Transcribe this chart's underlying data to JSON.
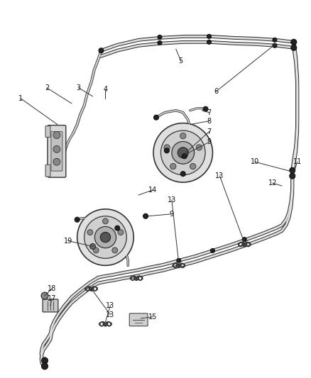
{
  "bg_color": "#ffffff",
  "figsize": [
    4.38,
    5.33
  ],
  "dpi": 100,
  "label_fontsize": 7.0,
  "tube_dark": "#3a3a3a",
  "tube_mid": "#aaaaaa",
  "tube_light": "#ffffff"
}
